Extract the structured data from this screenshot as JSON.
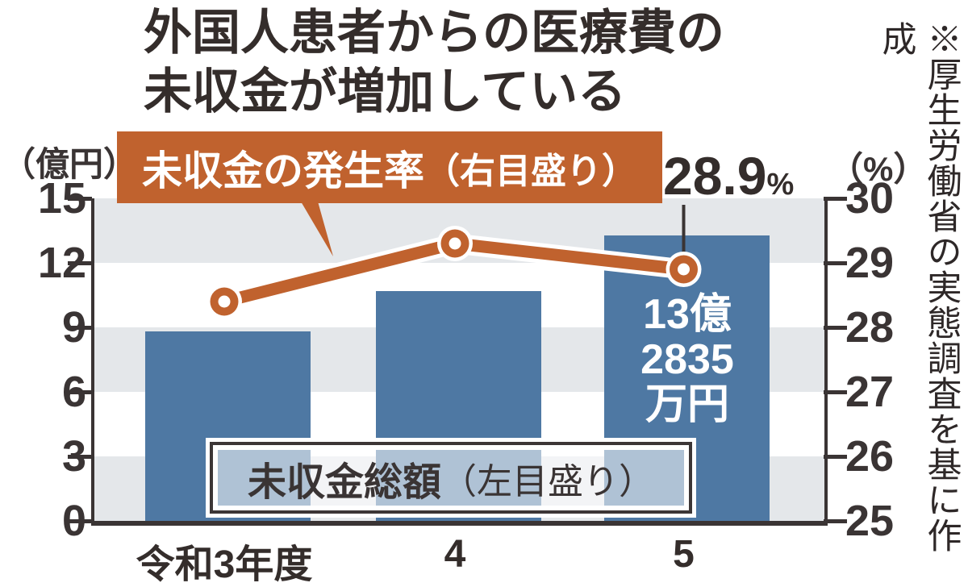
{
  "title": {
    "line1": "外国人患者からの医療費の",
    "line2": "未収金が増加している"
  },
  "axes": {
    "left_unit": "（億円）",
    "right_unit": "（%）",
    "left_ticks": [
      "15",
      "12",
      "9",
      "6",
      "3",
      "0"
    ],
    "right_ticks": [
      "30",
      "29",
      "28",
      "27",
      "26",
      "25"
    ]
  },
  "labels": {
    "line_series_main": "未収金の発生率",
    "line_series_paren": "（右目盛り）",
    "bar_series_main": "未収金総額",
    "bar_series_paren": "（左目盛り）"
  },
  "annotations": {
    "peak_value": "28.9",
    "peak_unit": "%",
    "bar_value_lines": [
      "13億",
      "2835",
      "万円"
    ]
  },
  "x_labels": [
    "令和3年度",
    "4",
    "5"
  ],
  "source_note": "※厚生労働省の実態調査を基に作成",
  "colors": {
    "bar_blue": "#4e78a3",
    "line_orange": "#c0622e",
    "band_gray": "#e4e7ea",
    "axis_dark": "#3a3434",
    "text_dark": "#342d2b",
    "white": "#ffffff"
  },
  "chart_data": {
    "type": "bar+line",
    "categories": [
      "令和3年度",
      "4",
      "5"
    ],
    "series": [
      {
        "name": "未収金総額（左目盛り）",
        "type": "bar",
        "axis": "left",
        "unit": "億円",
        "values": [
          8.8,
          10.7,
          13.2835
        ]
      },
      {
        "name": "未収金の発生率（右目盛り）",
        "type": "line",
        "axis": "right",
        "unit": "%",
        "values": [
          28.4,
          29.3,
          28.9
        ]
      }
    ],
    "title": "外国人患者からの医療費の未収金が増加している",
    "left_axis": {
      "label": "（億円）",
      "range": [
        0,
        15
      ],
      "tick_step": 3
    },
    "right_axis": {
      "label": "（%）",
      "range": [
        25,
        30
      ],
      "tick_step": 1
    },
    "grid": "alternating horizontal gray/white bands (3億円 per band)",
    "legend_position": "line label top-left over plot; bar label boxed bottom-center over bars",
    "annotations": [
      "28.9%（令和5年度の発生率）",
      "13億2835万円（令和5年度の未収金総額）"
    ]
  }
}
